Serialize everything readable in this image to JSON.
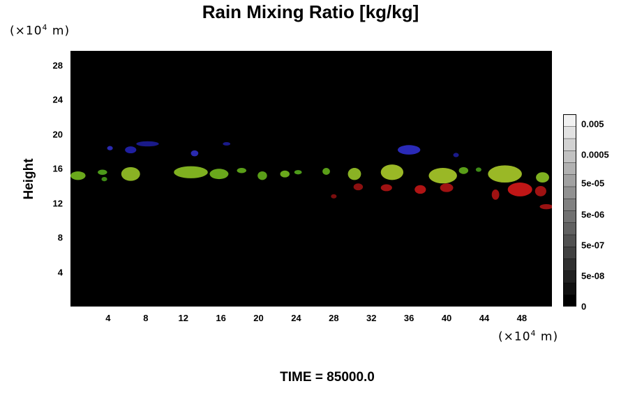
{
  "chart_data": {
    "type": "heatmap",
    "title": "Rain Mixing Ratio [kg/kg]",
    "ylabel": "Height",
    "x_unit": {
      "prefix": "(×10",
      "exp": "4",
      "suffix": " m)"
    },
    "y_unit": {
      "prefix": "(×10",
      "exp": "4",
      "suffix": " m)"
    },
    "xlim": [
      0,
      51.2
    ],
    "ylim": [
      0,
      29.7
    ],
    "x_ticks": [
      4,
      8,
      12,
      16,
      20,
      24,
      28,
      32,
      36,
      40,
      44,
      48
    ],
    "y_ticks": [
      4,
      8,
      12,
      16,
      20,
      24,
      28
    ],
    "time_label": "TIME = 85000.0",
    "colorbar": {
      "labels": [
        "0",
        "5e-08",
        "5e-07",
        "5e-06",
        "5e-05",
        "0.0005",
        "0.005"
      ],
      "label_fractions": [
        0.0,
        0.16,
        0.32,
        0.48,
        0.64,
        0.79,
        0.95
      ],
      "levels": 16,
      "color_low": "#000000",
      "color_high": "#f2f2f2"
    },
    "background_color": "#000000",
    "features": [
      {
        "color": "#6aa81c",
        "x": 0.8,
        "y": 15.2,
        "w": 1.6,
        "h": 1.0
      },
      {
        "color": "#4d9a1a",
        "x": 3.4,
        "y": 15.6,
        "w": 1.0,
        "h": 0.6
      },
      {
        "color": "#3e8a16",
        "x": 3.6,
        "y": 14.8,
        "w": 0.6,
        "h": 0.5
      },
      {
        "color": "#8ab224",
        "x": 6.4,
        "y": 15.4,
        "w": 2.0,
        "h": 1.6
      },
      {
        "color": "#7fb020",
        "x": 12.8,
        "y": 15.6,
        "w": 3.6,
        "h": 1.4
      },
      {
        "color": "#6aa81c",
        "x": 15.8,
        "y": 15.4,
        "w": 2.0,
        "h": 1.2
      },
      {
        "color": "#5a9e18",
        "x": 18.2,
        "y": 15.8,
        "w": 1.0,
        "h": 0.6
      },
      {
        "color": "#5a9e18",
        "x": 20.4,
        "y": 15.2,
        "w": 1.0,
        "h": 1.0
      },
      {
        "color": "#6aa81c",
        "x": 22.8,
        "y": 15.4,
        "w": 1.0,
        "h": 0.8
      },
      {
        "color": "#4d9a1a",
        "x": 24.2,
        "y": 15.6,
        "w": 0.8,
        "h": 0.5
      },
      {
        "color": "#5a9e18",
        "x": 27.2,
        "y": 15.7,
        "w": 0.8,
        "h": 0.8
      },
      {
        "color": "#8ab224",
        "x": 30.2,
        "y": 15.4,
        "w": 1.4,
        "h": 1.4
      },
      {
        "color": "#9ab826",
        "x": 34.2,
        "y": 15.6,
        "w": 2.4,
        "h": 1.8
      },
      {
        "color": "#9ab826",
        "x": 39.6,
        "y": 15.2,
        "w": 3.0,
        "h": 1.8
      },
      {
        "color": "#5a9e18",
        "x": 41.8,
        "y": 15.8,
        "w": 1.0,
        "h": 0.8
      },
      {
        "color": "#3e8a16",
        "x": 43.4,
        "y": 15.9,
        "w": 0.6,
        "h": 0.5
      },
      {
        "color": "#9ab826",
        "x": 46.2,
        "y": 15.4,
        "w": 3.6,
        "h": 2.0
      },
      {
        "color": "#7fb020",
        "x": 50.2,
        "y": 15.0,
        "w": 1.4,
        "h": 1.2
      },
      {
        "color": "#8b1010",
        "x": 30.6,
        "y": 13.9,
        "w": 1.0,
        "h": 0.8
      },
      {
        "color": "#a01212",
        "x": 33.6,
        "y": 13.8,
        "w": 1.2,
        "h": 0.8
      },
      {
        "color": "#b01414",
        "x": 37.2,
        "y": 13.6,
        "w": 1.2,
        "h": 1.0
      },
      {
        "color": "#a01212",
        "x": 40.0,
        "y": 13.8,
        "w": 1.4,
        "h": 1.0
      },
      {
        "color": "#7a0e0e",
        "x": 28.0,
        "y": 12.8,
        "w": 0.6,
        "h": 0.5
      },
      {
        "color": "#a01212",
        "x": 45.2,
        "y": 13.0,
        "w": 0.8,
        "h": 1.2
      },
      {
        "color": "#c01616",
        "x": 47.8,
        "y": 13.6,
        "w": 2.6,
        "h": 1.6
      },
      {
        "color": "#a01212",
        "x": 50.0,
        "y": 13.4,
        "w": 1.2,
        "h": 1.2
      },
      {
        "color": "#9a1212",
        "x": 50.6,
        "y": 11.6,
        "w": 1.4,
        "h": 0.6
      },
      {
        "color": "#2a2ab0",
        "x": 4.2,
        "y": 18.4,
        "w": 0.6,
        "h": 0.5
      },
      {
        "color": "#1f1fa0",
        "x": 6.4,
        "y": 18.2,
        "w": 1.2,
        "h": 0.8
      },
      {
        "color": "#1a1a8a",
        "x": 8.2,
        "y": 18.9,
        "w": 2.4,
        "h": 0.6
      },
      {
        "color": "#2a2ab0",
        "x": 13.2,
        "y": 17.8,
        "w": 0.8,
        "h": 0.7
      },
      {
        "color": "#1a1a8a",
        "x": 16.6,
        "y": 18.9,
        "w": 0.8,
        "h": 0.4
      },
      {
        "color": "#2a2ab8",
        "x": 36.0,
        "y": 18.2,
        "w": 2.4,
        "h": 1.1
      },
      {
        "color": "#1a1a8a",
        "x": 41.0,
        "y": 17.6,
        "w": 0.6,
        "h": 0.5
      }
    ]
  }
}
